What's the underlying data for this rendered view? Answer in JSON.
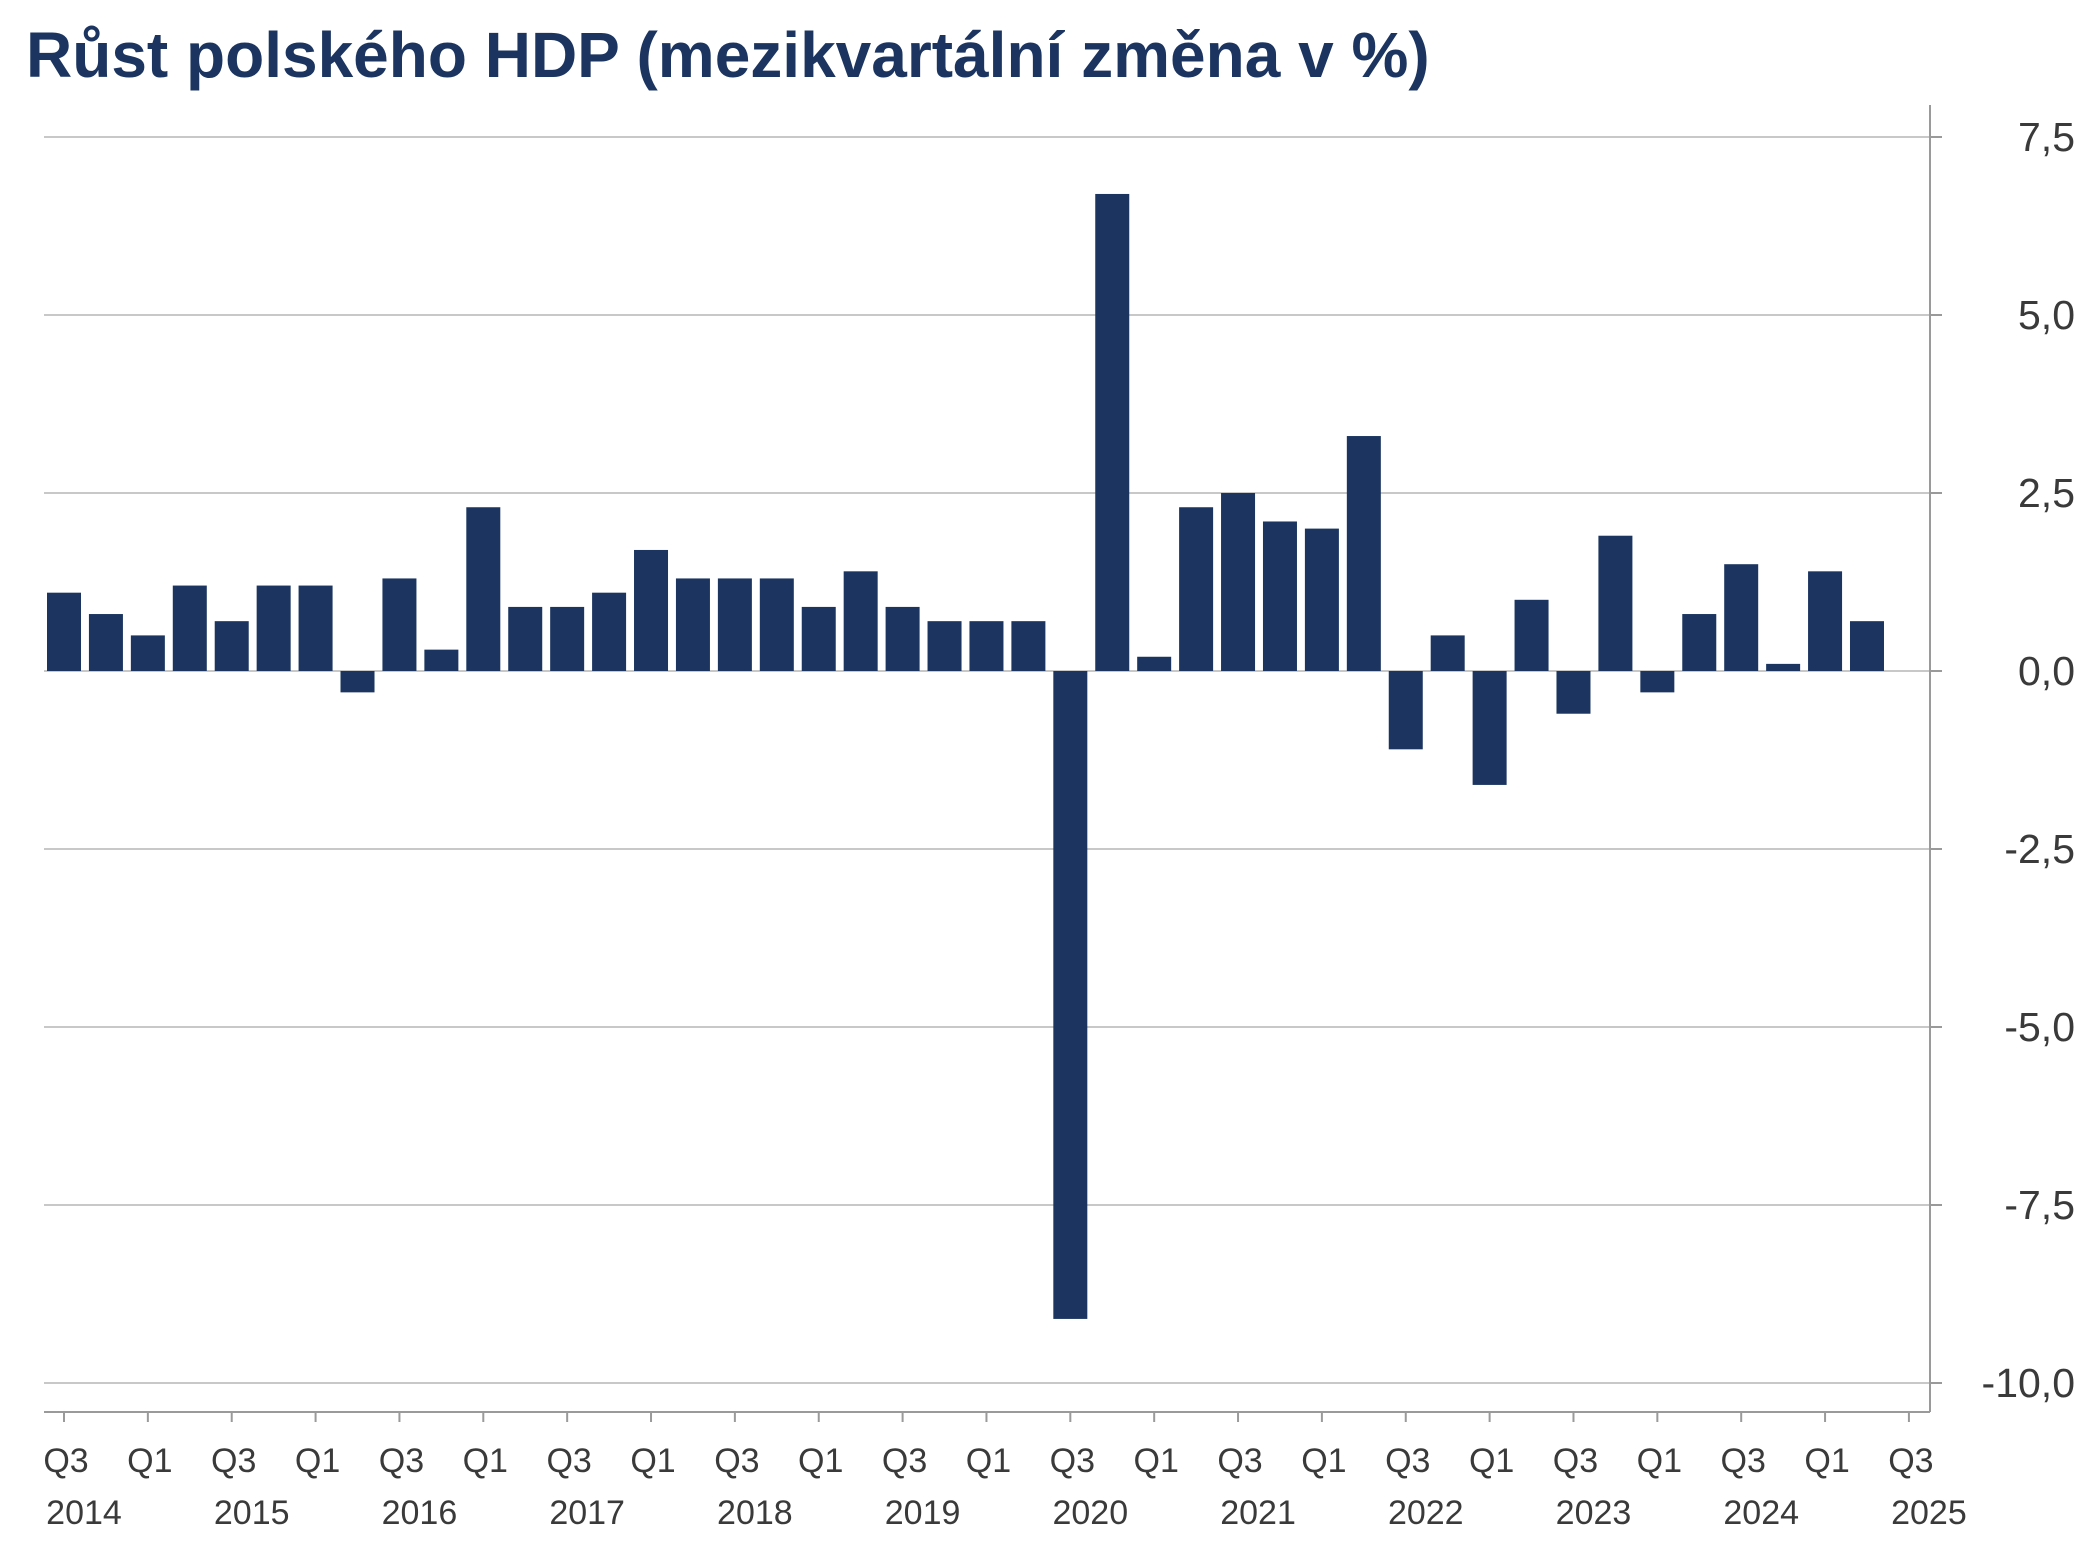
{
  "chart_data": {
    "type": "bar",
    "title": "Růst polského HDP (mezikvartální změna v %)",
    "xlabel": "",
    "ylabel": "",
    "ylim": [
      -10.0,
      7.5
    ],
    "yticks": [
      "7,5",
      "5,0",
      "2,5",
      "0,0",
      "-2,5",
      "-5,0",
      "-7,5",
      "-10,0"
    ],
    "ytick_values": [
      7.5,
      5.0,
      2.5,
      0.0,
      -2.5,
      -5.0,
      -7.5,
      -10.0
    ],
    "y_axis_position": "right",
    "grid": true,
    "legend": "none",
    "bar_color": "#1b3560",
    "categories": [
      "Q3 2014",
      "Q4 2014",
      "Q1 2015",
      "Q2 2015",
      "Q3 2015",
      "Q4 2015",
      "Q1 2016",
      "Q2 2016",
      "Q3 2016",
      "Q4 2016",
      "Q1 2017",
      "Q2 2017",
      "Q3 2017",
      "Q4 2017",
      "Q1 2018",
      "Q2 2018",
      "Q3 2018",
      "Q4 2018",
      "Q1 2019",
      "Q2 2019",
      "Q3 2019",
      "Q4 2019",
      "Q1 2020",
      "Q2 2020",
      "Q3 2020",
      "Q4 2020",
      "Q1 2021",
      "Q2 2021",
      "Q3 2021",
      "Q4 2021",
      "Q1 2022",
      "Q2 2022",
      "Q3 2022",
      "Q4 2022",
      "Q1 2023",
      "Q2 2023",
      "Q3 2023",
      "Q4 2023",
      "Q1 2024",
      "Q2 2024",
      "Q3 2024",
      "Q4 2024",
      "Q1 2025",
      "Q2 2025"
    ],
    "values": [
      1.1,
      0.8,
      0.5,
      1.2,
      0.7,
      1.2,
      1.2,
      -0.3,
      1.3,
      0.3,
      2.3,
      0.9,
      0.9,
      1.1,
      1.7,
      1.3,
      1.3,
      1.3,
      0.9,
      1.4,
      0.9,
      0.7,
      0.7,
      0.7,
      -9.1,
      6.7,
      0.2,
      2.3,
      2.5,
      2.1,
      2.0,
      3.3,
      -1.1,
      0.5,
      -1.6,
      1.0,
      -0.6,
      1.9,
      -0.3,
      0.8,
      1.5,
      0.1,
      1.4,
      0.7
    ],
    "x_tick_labels": [
      {
        "quarter": "Q3",
        "year": "2014"
      },
      {
        "quarter": "Q1",
        "year": ""
      },
      {
        "quarter": "Q3",
        "year": "2015"
      },
      {
        "quarter": "Q1",
        "year": ""
      },
      {
        "quarter": "Q3",
        "year": "2016"
      },
      {
        "quarter": "Q1",
        "year": ""
      },
      {
        "quarter": "Q3",
        "year": "2017"
      },
      {
        "quarter": "Q1",
        "year": ""
      },
      {
        "quarter": "Q3",
        "year": "2018"
      },
      {
        "quarter": "Q1",
        "year": ""
      },
      {
        "quarter": "Q3",
        "year": "2019"
      },
      {
        "quarter": "Q1",
        "year": ""
      },
      {
        "quarter": "Q3",
        "year": "2020"
      },
      {
        "quarter": "Q1",
        "year": ""
      },
      {
        "quarter": "Q3",
        "year": "2021"
      },
      {
        "quarter": "Q1",
        "year": ""
      },
      {
        "quarter": "Q3",
        "year": "2022"
      },
      {
        "quarter": "Q1",
        "year": ""
      },
      {
        "quarter": "Q3",
        "year": "2023"
      },
      {
        "quarter": "Q1",
        "year": ""
      },
      {
        "quarter": "Q3",
        "year": "2024"
      },
      {
        "quarter": "Q1",
        "year": ""
      },
      {
        "quarter": "Q3",
        "year": "2025"
      }
    ]
  }
}
